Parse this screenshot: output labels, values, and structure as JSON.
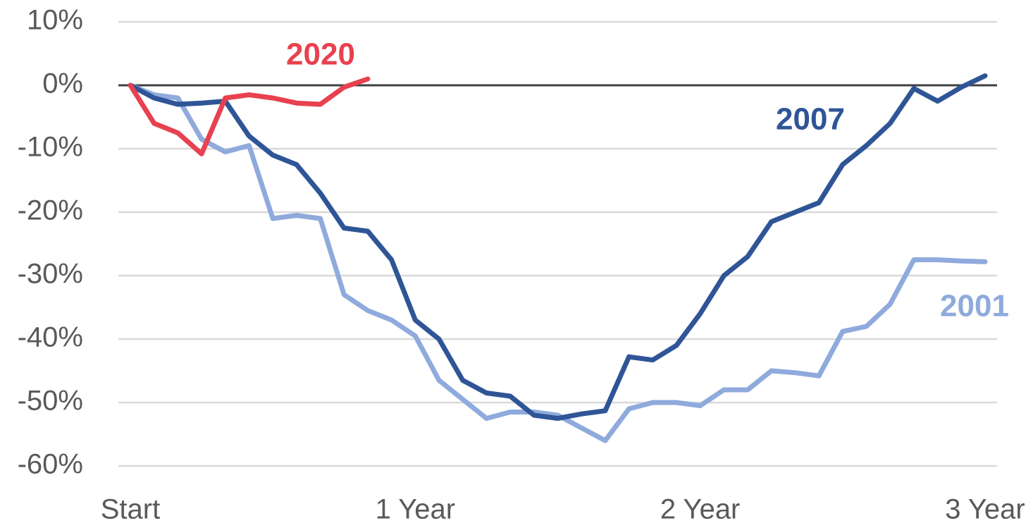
{
  "chart_data": {
    "type": "line",
    "categories": [
      "Start",
      null,
      null,
      null,
      null,
      null,
      null,
      null,
      null,
      null,
      null,
      null,
      "1 Year",
      null,
      null,
      null,
      null,
      null,
      null,
      null,
      null,
      null,
      null,
      null,
      "2 Year",
      null,
      null,
      null,
      null,
      null,
      null,
      null,
      null,
      null,
      null,
      null,
      "3 Year"
    ],
    "series": [
      {
        "name": "2001",
        "color": "#8faadc",
        "values": [
          0,
          -1.5,
          -2,
          -8.5,
          -10.5,
          -9.5,
          -21,
          -20.5,
          -21,
          -33,
          -35.5,
          -37,
          -39.5,
          -46.5,
          -49.5,
          -52.5,
          -51.5,
          -51.5,
          -52,
          -54,
          -56,
          -51,
          -50,
          -50,
          -50.5,
          -48,
          -48,
          -45,
          -45.3,
          -45.8,
          -38.8,
          -38,
          -34.5,
          -27.5,
          -27.5,
          -27.7,
          -27.8
        ]
      },
      {
        "name": "2007",
        "color": "#2f5597",
        "values": [
          0,
          -2,
          -3,
          -2.8,
          -2.5,
          -8,
          -11,
          -12.5,
          -17,
          -22.5,
          -23,
          -27.5,
          -37,
          -40,
          -46.5,
          -48.5,
          -49,
          -52,
          -52.5,
          -51.8,
          -51.3,
          -42.8,
          -43.3,
          -41,
          -36,
          -30,
          -27,
          -21.5,
          -20,
          -18.5,
          -12.5,
          -9.5,
          -6,
          -0.5,
          -2.5,
          -0.3,
          1.5
        ]
      },
      {
        "name": "2020",
        "color": "#e8414f",
        "values": [
          0,
          -6,
          -7.5,
          -10.8,
          -2,
          -1.5,
          -2,
          -2.8,
          -3,
          -0.3,
          1,
          null,
          null,
          null,
          null,
          null,
          null,
          null,
          null,
          null,
          null,
          null,
          null,
          null,
          null,
          null,
          null,
          null,
          null,
          null,
          null,
          null,
          null,
          null,
          null,
          null,
          null
        ]
      }
    ],
    "ylim": [
      -60,
      10
    ],
    "yticks": [
      {
        "value": -60,
        "label": "-60%"
      },
      {
        "value": -50,
        "label": "-50%"
      },
      {
        "value": -40,
        "label": "-40%"
      },
      {
        "value": -30,
        "label": "-30%"
      },
      {
        "value": -20,
        "label": "-20%"
      },
      {
        "value": -10,
        "label": "-10%"
      },
      {
        "value": 0,
        "label": "0%"
      },
      {
        "value": 10,
        "label": "10%"
      }
    ],
    "grid": true
  }
}
